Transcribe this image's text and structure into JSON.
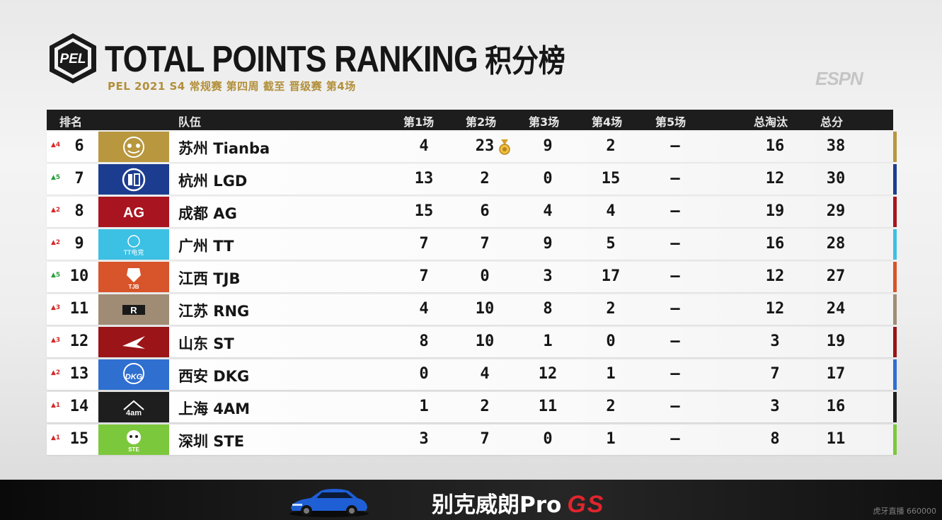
{
  "header": {
    "logo_text": "PEL",
    "title": "TOTAL POINTS RANKING",
    "title_cn": "积分榜",
    "subtitle": "PEL 2021 S4 常规赛 第四周 截至 晋级赛 第4场",
    "watermark": "ESPN"
  },
  "columns": {
    "rank": "排名",
    "team": "队伍",
    "m1": "第1场",
    "m2": "第2场",
    "m3": "第3场",
    "m4": "第4场",
    "m5": "第5场",
    "kills": "总淘汰",
    "total": "总分"
  },
  "rows": [
    {
      "delta": "▲4",
      "delta_color": "red",
      "rank": "6",
      "team": "苏州 Tianba",
      "m1": "4",
      "m2": "23",
      "m3": "9",
      "m4": "2",
      "m5": "—",
      "kills": "16",
      "total": "38",
      "color": "#b8973f",
      "medal": true,
      "logo": "tianba-logo"
    },
    {
      "delta": "▲5",
      "delta_color": "green",
      "rank": "7",
      "team": "杭州 LGD",
      "m1": "13",
      "m2": "2",
      "m3": "0",
      "m4": "15",
      "m5": "—",
      "kills": "12",
      "total": "30",
      "color": "#1c3d8f",
      "medal": false,
      "logo": "lgd-logo"
    },
    {
      "delta": "▲2",
      "delta_color": "red",
      "rank": "8",
      "team": "成都 AG",
      "m1": "15",
      "m2": "6",
      "m3": "4",
      "m4": "4",
      "m5": "—",
      "kills": "19",
      "total": "29",
      "color": "#a8141f",
      "medal": false,
      "logo": "ag-logo"
    },
    {
      "delta": "▲2",
      "delta_color": "red",
      "rank": "9",
      "team": "广州 TT",
      "m1": "7",
      "m2": "7",
      "m3": "9",
      "m4": "5",
      "m5": "—",
      "kills": "16",
      "total": "28",
      "color": "#3cc0e4",
      "medal": false,
      "logo": "tt-logo",
      "logo_text": "TT电竞"
    },
    {
      "delta": "▲5",
      "delta_color": "green",
      "rank": "10",
      "team": "江西 TJB",
      "m1": "7",
      "m2": "0",
      "m3": "3",
      "m4": "17",
      "m5": "—",
      "kills": "12",
      "total": "27",
      "color": "#d8542a",
      "medal": false,
      "logo": "tjb-logo",
      "logo_text": "TJB"
    },
    {
      "delta": "▲3",
      "delta_color": "red",
      "rank": "11",
      "team": "江苏 RNG",
      "m1": "4",
      "m2": "10",
      "m3": "8",
      "m4": "2",
      "m5": "—",
      "kills": "12",
      "total": "24",
      "color": "#a08c74",
      "medal": false,
      "logo": "rng-logo",
      "logo_text": "R"
    },
    {
      "delta": "▲3",
      "delta_color": "red",
      "rank": "12",
      "team": "山东 ST",
      "m1": "8",
      "m2": "10",
      "m3": "1",
      "m4": "0",
      "m5": "—",
      "kills": "3",
      "total": "19",
      "color": "#9a1418",
      "medal": false,
      "logo": "st-logo"
    },
    {
      "delta": "▲2",
      "delta_color": "red",
      "rank": "13",
      "team": "西安 DKG",
      "m1": "0",
      "m2": "4",
      "m3": "12",
      "m4": "1",
      "m5": "—",
      "kills": "7",
      "total": "17",
      "color": "#2f6fd0",
      "medal": false,
      "logo": "dkg-logo",
      "logo_text": "DKG"
    },
    {
      "delta": "▲1",
      "delta_color": "red",
      "rank": "14",
      "team": "上海 4AM",
      "m1": "1",
      "m2": "2",
      "m3": "11",
      "m4": "2",
      "m5": "—",
      "kills": "3",
      "total": "16",
      "color": "#1e1e1e",
      "medal": false,
      "logo": "4am-logo",
      "logo_text": "4am"
    },
    {
      "delta": "▲1",
      "delta_color": "red",
      "rank": "15",
      "team": "深圳 STE",
      "m1": "3",
      "m2": "7",
      "m3": "0",
      "m4": "1",
      "m5": "—",
      "kills": "8",
      "total": "11",
      "color": "#7cc83c",
      "medal": false,
      "logo": "ste-logo",
      "logo_text": "STE"
    }
  ],
  "sponsor": {
    "text": "别克威朗Pro",
    "gs": "GS"
  },
  "stream_watermark": "虎牙直播 660000"
}
